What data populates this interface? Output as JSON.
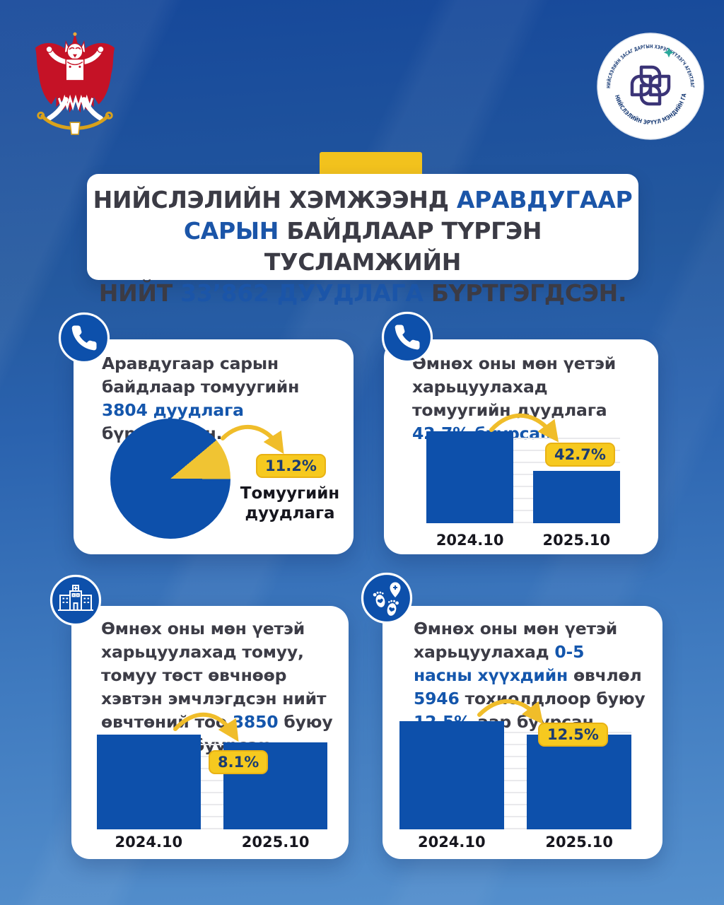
{
  "chart_data": [
    {
      "type": "pie",
      "values": [
        11.2,
        88.8
      ],
      "colors": [
        "#f0c433",
        "#0d50ab"
      ],
      "annotation": "11.2%",
      "label_lines": [
        "Томуугийн",
        "дуудлага"
      ],
      "legend_position": "right",
      "title": ""
    },
    {
      "type": "bar",
      "categories": [
        "2024.10",
        "2025.10"
      ],
      "values": [
        100,
        57.3
      ],
      "unit": "relative-height-%",
      "badge": "42.7%",
      "grid": true,
      "bar_color": "#0d50ab"
    },
    {
      "type": "bar",
      "categories": [
        "2024.10",
        "2025.10"
      ],
      "values": [
        100,
        91.9
      ],
      "unit": "relative-height-%",
      "badge": "8.1%",
      "grid": true,
      "bar_color": "#0d50ab"
    },
    {
      "type": "bar",
      "categories": [
        "2024.10",
        "2025.10"
      ],
      "values": [
        100,
        87.5
      ],
      "unit": "relative-height-%",
      "badge": "12.5%",
      "grid": true,
      "bar_color": "#0d50ab"
    }
  ],
  "logo": {
    "arc_top": "НИЙСЛЭЛИЙН ЗАСАГ ДАРГЫН ХЭРЭГЖҮҮЛЭГЧ АГЕНТЛАГ",
    "arc_bottom": "НИЙСЛЭЛИЙН ЭРҮҮЛ МЭНДИЙН ГАЗАР"
  },
  "icons": {
    "left_emblem": "garuda-emblem",
    "right_logo": "health-department-round-logo",
    "card1": "phone-icon",
    "card2": "phone-icon",
    "card3": "hospital-icon",
    "card4": "baby-footprints-icon"
  },
  "title": {
    "l1_normal": "НИЙСЛЭЛИЙН ХЭМЖЭЭНД ",
    "l1_hl": "АРАВДУГААР",
    "l2_hl": "САРЫН",
    "l2_normal": " БАЙДЛААР ТҮРГЭН ТУСЛАМЖИЙН",
    "l3_pre": "НИЙТ ",
    "l3_hl": "33’862 ДУУДЛАГА",
    "l3_post": " БҮРТГЭГДСЭН."
  },
  "cards": [
    {
      "text": {
        "s1": "Аравдугаар сарын байдлаар томуугийн ",
        "hl1": "3804 дуудлага",
        "s2": " бүртгэгдсэн."
      }
    },
    {
      "text": {
        "s1": "Өмнөх оны мөн үетэй харьцуулахад томуугийн дуудлага ",
        "hl1": "42.7% буурсан",
        "s2": "."
      }
    },
    {
      "text": {
        "s1": "Өмнөх оны мөн үетэй харьцуулахад томуу, томуу төст өвчнөөр хэвтэн эмчлэгдсэн нийт өвчтөний тоо ",
        "hl1": "3850",
        "s2": " буюу ",
        "hl2": "8.1%",
        "s3": "-аар буурсан."
      }
    },
    {
      "text": {
        "s1": "Өмнөх оны мөн үетэй харьцуулахад ",
        "hl1": "0-5 насны хүүхдийн",
        "s2": " өвчлөл ",
        "hl2": "5946",
        "s3": " тохиолдлоор буюу ",
        "hl3": "12.5%",
        "s4": "-аар буурсан."
      }
    }
  ],
  "ui_colors": {
    "background_top": "#16489a",
    "background_bottom": "#5590cd",
    "primary_blue": "#0d50ab",
    "text_blue": "#1456ac",
    "accent_yellow": "#f2c21d",
    "pie_yellow": "#f0c433",
    "badge_bg": "#f6c91f",
    "badge_text": "#1b3c72",
    "text_dark": "#3c3c46",
    "label_dark": "#16161e",
    "gridline": "#e9e9ec",
    "card_bg": "#ffffff",
    "emblem_red": "#c51226"
  }
}
